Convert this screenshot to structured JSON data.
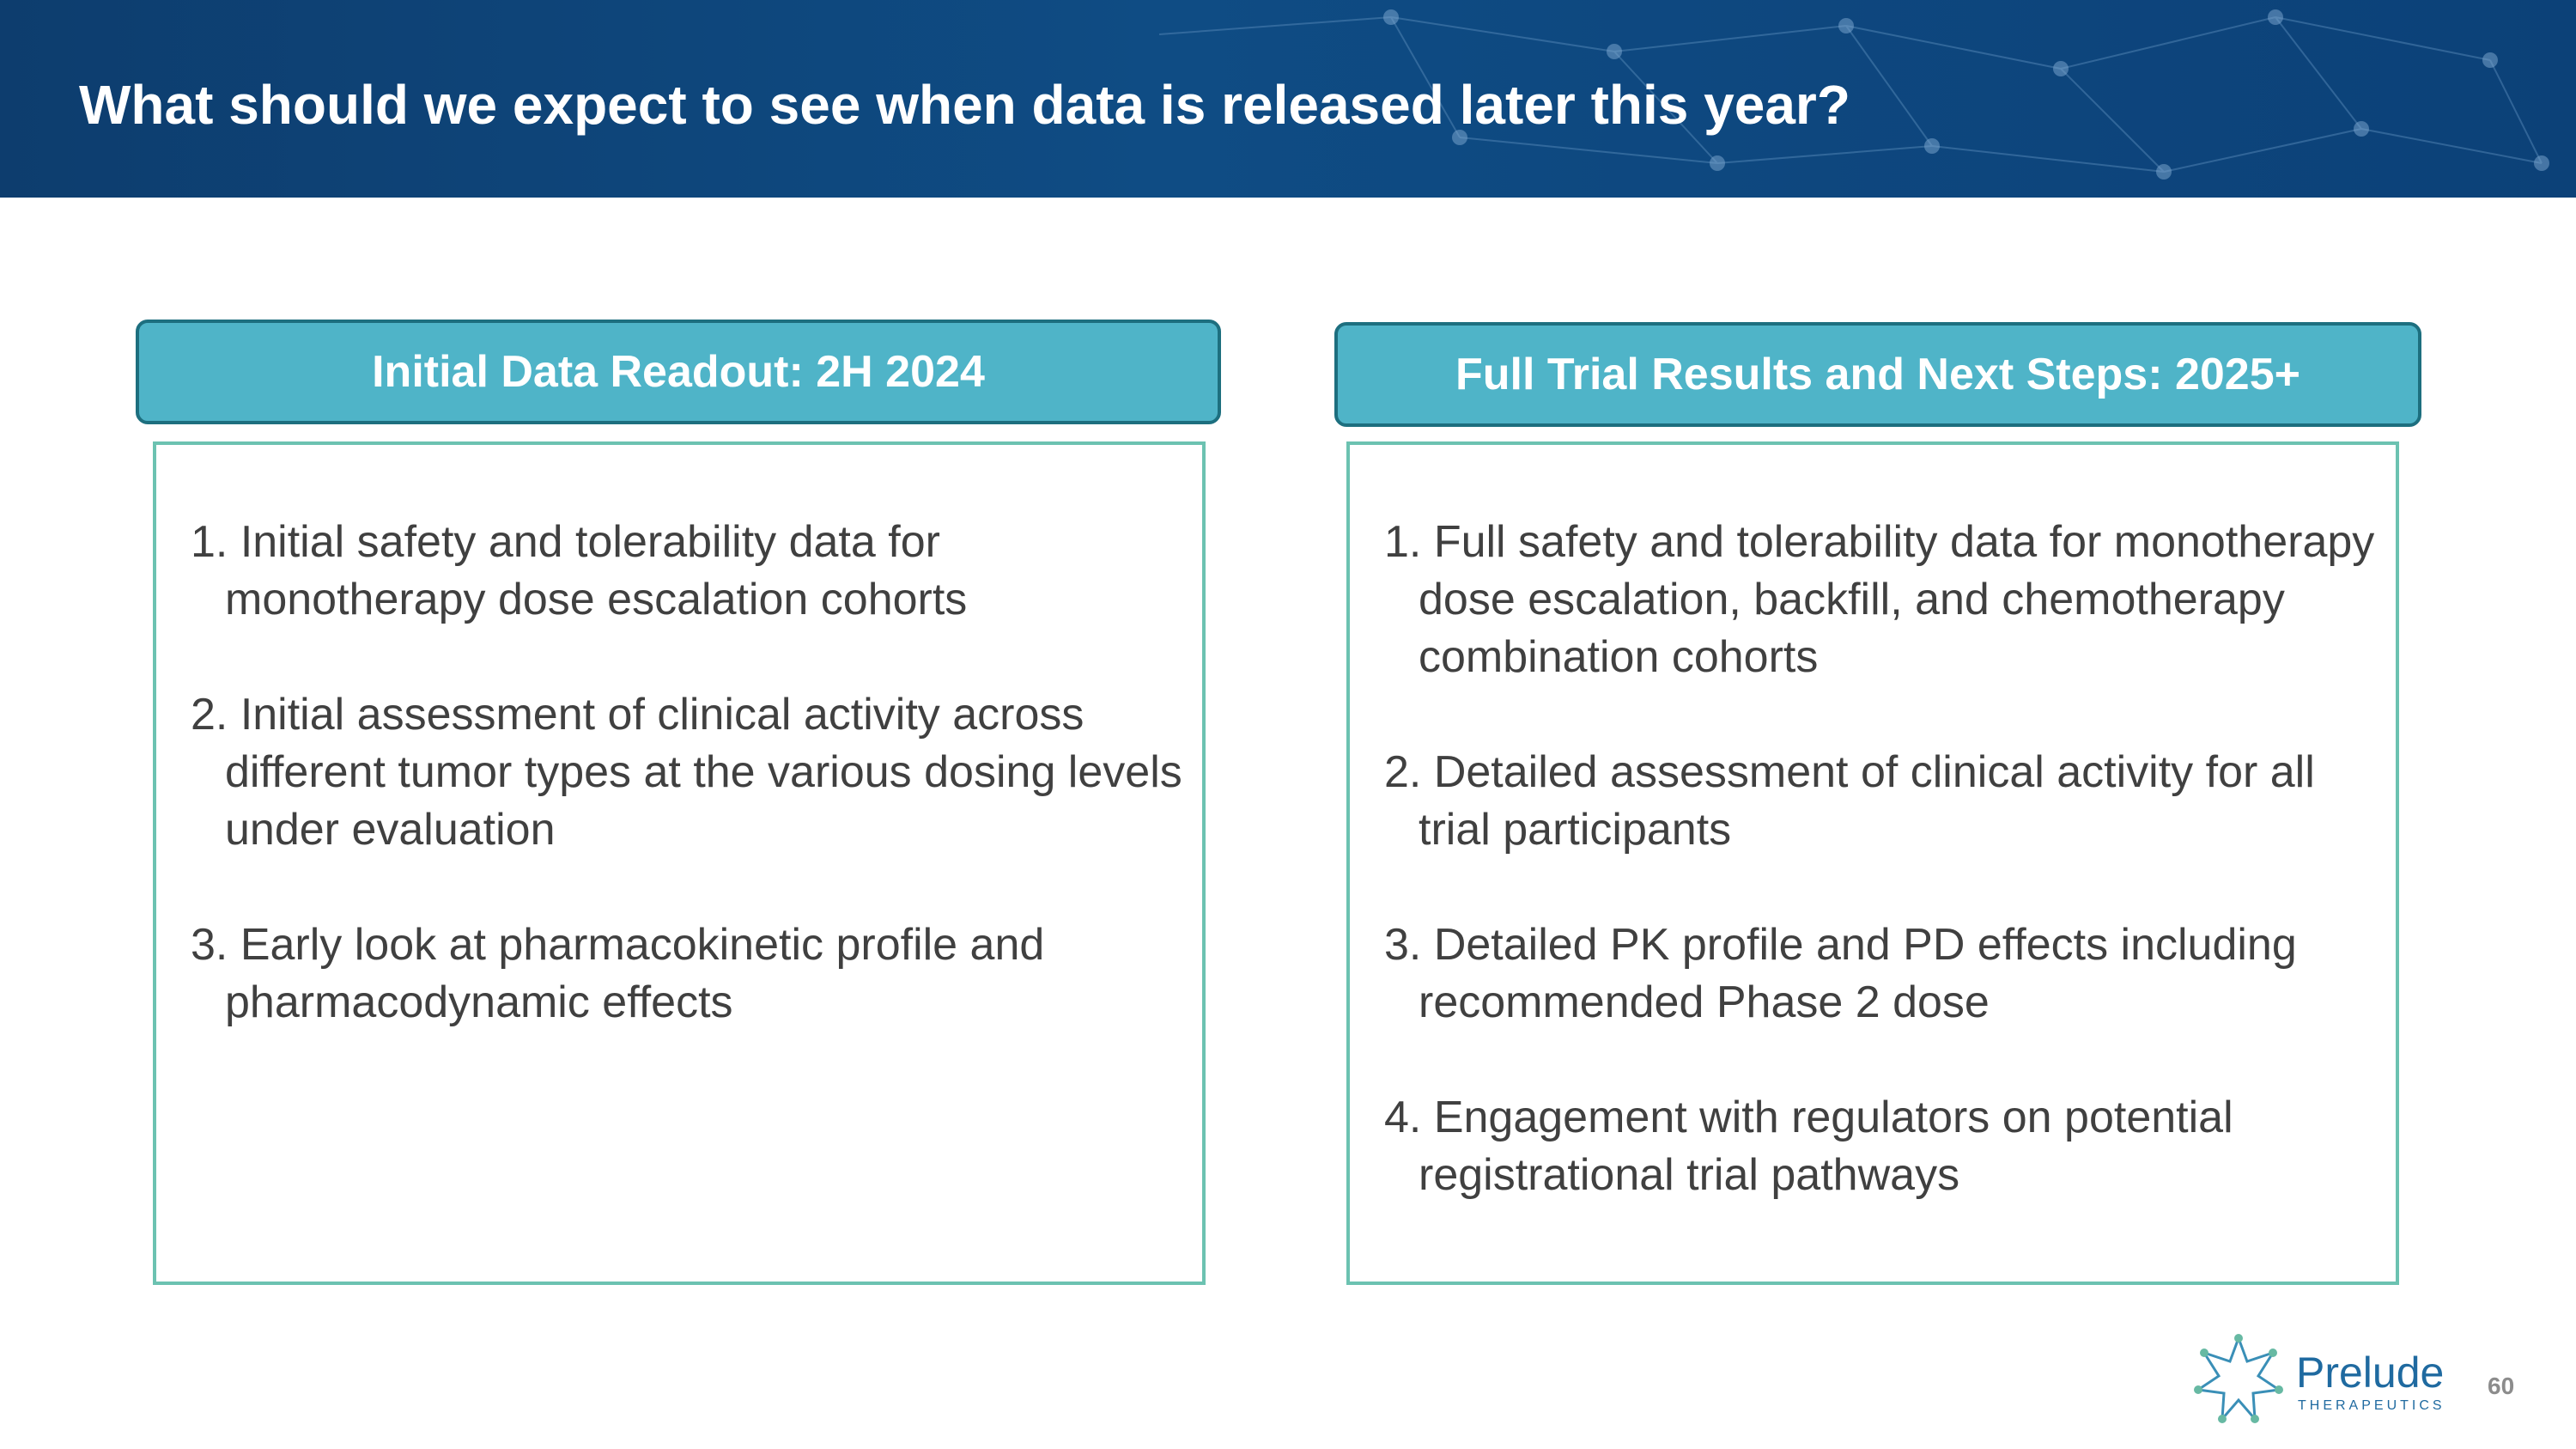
{
  "header": {
    "title": "What should we expect to see when data is released later this year?"
  },
  "columns": [
    {
      "heading": "Initial Data Readout: 2H 2024",
      "items": [
        "1. Initial safety and tolerability data for monotherapy dose escalation cohorts",
        "2. Initial assessment of clinical activity across different tumor types at the various dosing levels under evaluation",
        "3. Early look at pharmacokinetic profile and pharmacodynamic effects"
      ]
    },
    {
      "heading": "Full Trial Results and Next Steps: 2025+",
      "items": [
        "1. Full safety and tolerability data for monotherapy dose escalation, backfill, and chemotherapy combination cohorts",
        "2. Detailed assessment of clinical activity for all trial participants",
        "3. Detailed PK profile and PD effects including recommended Phase 2 dose",
        "4. Engagement with regulators on potential registrational trial pathways"
      ]
    }
  ],
  "footer": {
    "logo_word": "Prelude",
    "logo_sub": "THERAPEUTICS",
    "page_number": "60"
  },
  "colors": {
    "header_blue": "#0f4c84",
    "heading_teal": "#4fb4c8",
    "box_border": "#6cc2b1"
  }
}
